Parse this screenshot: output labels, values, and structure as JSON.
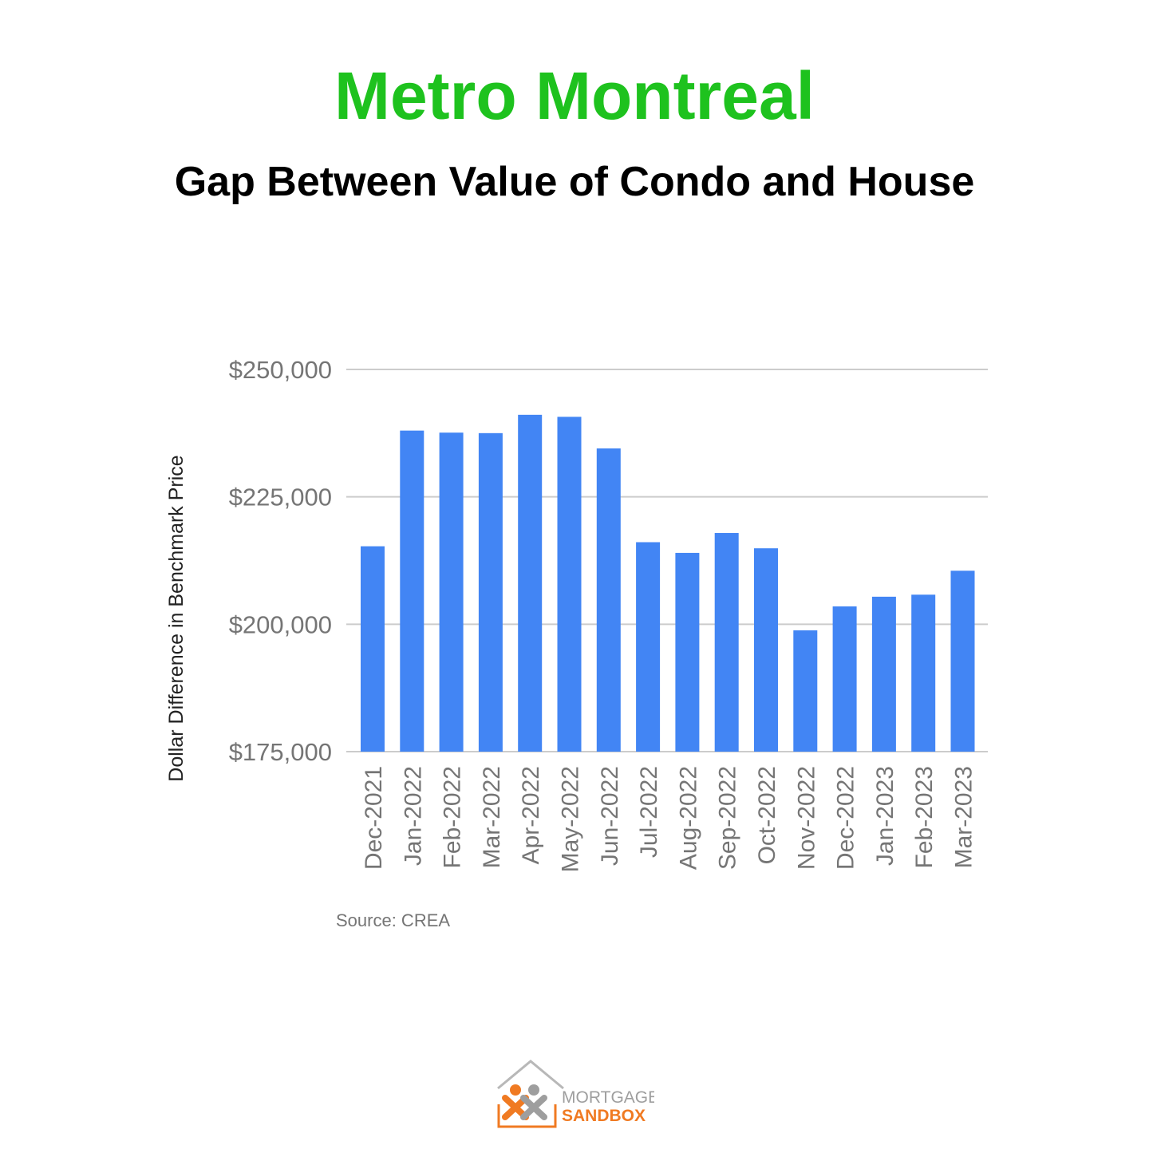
{
  "header": {
    "title": "Metro Montreal",
    "subtitle": "Gap Between Value of Condo and House"
  },
  "colors": {
    "title": "#1ec21e",
    "bar": "#4285f4",
    "grid": "#cccccc",
    "tick_label": "#757575",
    "axis_title": "#222222",
    "logo_orange": "#f07a22",
    "logo_gray": "#9e9e9e"
  },
  "chart_data": {
    "type": "bar",
    "ylabel": "Dollar Difference in Benchmark Price",
    "ylim": [
      175000,
      250000
    ],
    "yticks": [
      "$175,000",
      "$200,000",
      "$225,000",
      "$250,000"
    ],
    "ytick_values": [
      175000,
      200000,
      225000,
      250000
    ],
    "grid": true,
    "categories": [
      "Dec-2021",
      "Jan-2022",
      "Feb-2022",
      "Mar-2022",
      "Apr-2022",
      "May-2022",
      "Jun-2022",
      "Jul-2022",
      "Aug-2022",
      "Sep-2022",
      "Oct-2022",
      "Nov-2022",
      "Dec-2022",
      "Jan-2023",
      "Feb-2023",
      "Mar-2023"
    ],
    "values": [
      215300,
      238000,
      237600,
      237500,
      241100,
      240700,
      234500,
      216100,
      214000,
      217900,
      214900,
      198800,
      203500,
      205400,
      205800,
      210500
    ],
    "source": "Source: CREA"
  },
  "logo": {
    "line1": "MORTGAGE",
    "line2": "SANDBOX"
  }
}
